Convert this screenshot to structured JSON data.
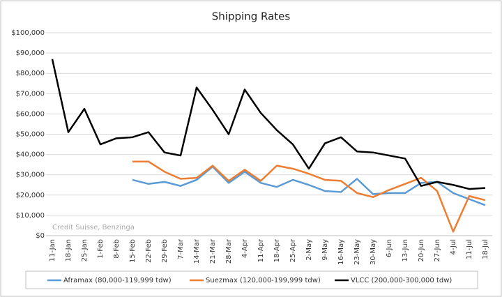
{
  "chart_data": {
    "type": "line",
    "title": "Shipping Rates",
    "annotation": "Credit Suisse, Benzinga",
    "categories": [
      "11-Jan",
      "18-Jan",
      "25-Jan",
      "1-Feb",
      "8-Feb",
      "15-Feb",
      "22-Feb",
      "29-Feb",
      "7-Mar",
      "14-Mar",
      "21-Mar",
      "28-Mar",
      "4-Apr",
      "11-Apr",
      "18-Apr",
      "25-Apr",
      "2-May",
      "9-May",
      "16-May",
      "23-May",
      "30-May",
      "6-Jun",
      "13-Jun",
      "20-Jun",
      "27-Jun",
      "4-Jul",
      "11-Jul",
      "18-Jul"
    ],
    "series": [
      {
        "name": "Aframax (80,000-119,999 tdw)",
        "color": "#5b9bd5",
        "values": [
          null,
          null,
          null,
          null,
          null,
          27500,
          25500,
          26500,
          24500,
          27500,
          34000,
          26000,
          31500,
          26000,
          24000,
          27500,
          25000,
          22000,
          21500,
          28000,
          20500,
          21000,
          21000,
          26000,
          26500,
          21000,
          18000,
          15000
        ]
      },
      {
        "name": "Suezmax (120,000-199,999 tdw)",
        "color": "#ed7d31",
        "values": [
          null,
          null,
          null,
          null,
          null,
          36500,
          36500,
          31500,
          28000,
          28500,
          34500,
          27000,
          32500,
          27000,
          34500,
          33000,
          30500,
          27500,
          27000,
          21000,
          19000,
          22500,
          25500,
          28500,
          22000,
          2000,
          19500,
          17500
        ]
      },
      {
        "name": "VLCC (200,000-300,000 tdw)",
        "color": "#000000",
        "values": [
          87000,
          51000,
          62500,
          45000,
          48000,
          48500,
          51000,
          41000,
          39500,
          73000,
          62000,
          50000,
          72000,
          60500,
          52000,
          45000,
          33000,
          45500,
          48500,
          41500,
          41000,
          39500,
          38000,
          24500,
          26500,
          25000,
          23000,
          23500
        ]
      }
    ],
    "ylim": [
      0,
      100000
    ],
    "yticks": [
      {
        "value": 0,
        "label": "$0"
      },
      {
        "value": 10000,
        "label": "$10,000"
      },
      {
        "value": 20000,
        "label": "$20,000"
      },
      {
        "value": 30000,
        "label": "$30,000"
      },
      {
        "value": 40000,
        "label": "$40,000"
      },
      {
        "value": 50000,
        "label": "$50,000"
      },
      {
        "value": 60000,
        "label": "$60,000"
      },
      {
        "value": 70000,
        "label": "$70,000"
      },
      {
        "value": 80000,
        "label": "$80,000"
      },
      {
        "value": 90000,
        "label": "$90,000"
      },
      {
        "value": 100000,
        "label": "$100,000"
      }
    ],
    "grid": true,
    "legend": "bottom"
  }
}
